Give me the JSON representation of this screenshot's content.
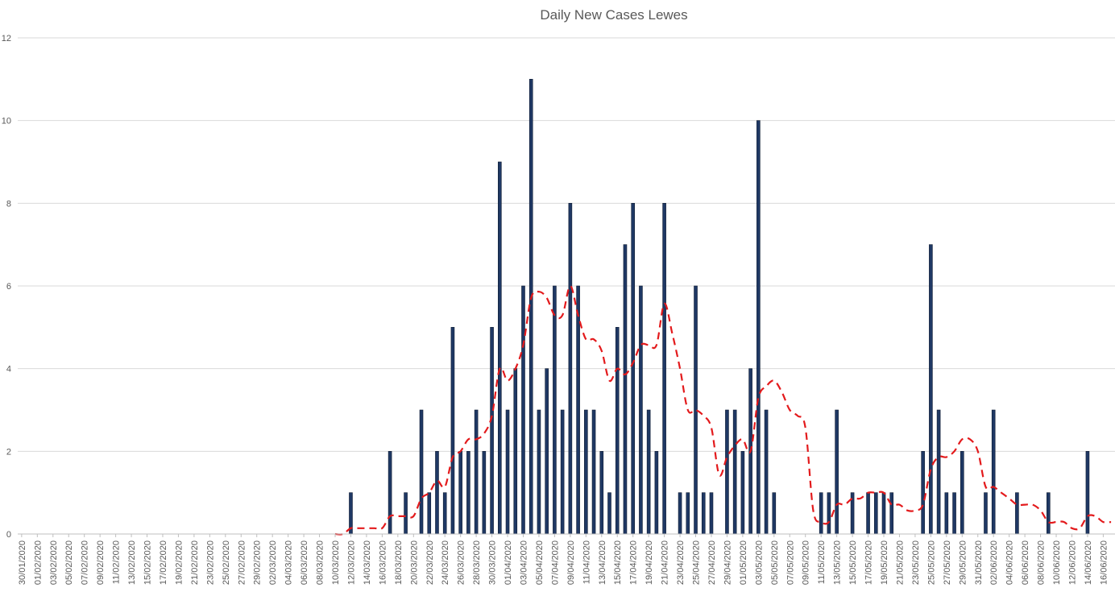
{
  "chart_data": {
    "type": "bar",
    "title": "Daily New Cases Lewes",
    "xlabel": "",
    "ylabel": "",
    "ylim": [
      0,
      12
    ],
    "y_ticks": [
      0,
      2,
      4,
      6,
      8,
      10,
      12
    ],
    "grid": true,
    "legend": "none",
    "start_date": "2020-01-30",
    "end_date": "2020-06-17",
    "tick_labels": [
      "30/01/2020",
      "01/02/2020",
      "03/02/2020",
      "05/02/2020",
      "07/02/2020",
      "09/02/2020",
      "11/02/2020",
      "13/02/2020",
      "15/02/2020",
      "17/02/2020",
      "19/02/2020",
      "21/02/2020",
      "23/02/2020",
      "25/02/2020",
      "27/02/2020",
      "29/02/2020",
      "02/03/2020",
      "04/03/2020",
      "06/03/2020",
      "08/03/2020",
      "10/03/2020",
      "12/03/2020",
      "14/03/2020",
      "16/03/2020",
      "18/03/2020",
      "20/03/2020",
      "22/03/2020",
      "24/03/2020",
      "26/03/2020",
      "28/03/2020",
      "30/03/2020",
      "01/04/2020",
      "03/04/2020",
      "05/04/2020",
      "07/04/2020",
      "09/04/2020",
      "11/04/2020",
      "13/04/2020",
      "15/04/2020",
      "17/04/2020",
      "19/04/2020",
      "21/04/2020",
      "23/04/2020",
      "25/04/2020",
      "27/04/2020",
      "29/04/2020",
      "01/05/2020",
      "03/05/2020",
      "05/05/2020",
      "07/05/2020",
      "09/05/2020",
      "11/05/2020",
      "13/05/2020",
      "15/05/2020",
      "17/05/2020",
      "19/05/2020",
      "21/05/2020",
      "23/05/2020",
      "25/05/2020",
      "27/05/2020",
      "29/05/2020",
      "31/05/2020",
      "02/06/2020",
      "04/06/2020",
      "06/06/2020",
      "08/06/2020",
      "10/06/2020",
      "12/06/2020",
      "14/06/2020",
      "16/06/2020"
    ],
    "series": [
      {
        "name": "",
        "type": "bar",
        "color": "#1f3864",
        "x": [
          "12/03/2020",
          "17/03/2020",
          "19/03/2020",
          "21/03/2020",
          "22/03/2020",
          "23/03/2020",
          "24/03/2020",
          "25/03/2020",
          "26/03/2020",
          "27/03/2020",
          "28/03/2020",
          "29/03/2020",
          "30/03/2020",
          "31/03/2020",
          "01/04/2020",
          "02/04/2020",
          "03/04/2020",
          "04/04/2020",
          "05/04/2020",
          "06/04/2020",
          "07/04/2020",
          "08/04/2020",
          "09/04/2020",
          "10/04/2020",
          "11/04/2020",
          "12/04/2020",
          "13/04/2020",
          "14/04/2020",
          "15/04/2020",
          "16/04/2020",
          "17/04/2020",
          "18/04/2020",
          "19/04/2020",
          "20/04/2020",
          "21/04/2020",
          "23/04/2020",
          "24/04/2020",
          "25/04/2020",
          "26/04/2020",
          "27/04/2020",
          "29/04/2020",
          "30/04/2020",
          "01/05/2020",
          "02/05/2020",
          "03/05/2020",
          "04/05/2020",
          "05/05/2020",
          "11/05/2020",
          "12/05/2020",
          "13/05/2020",
          "15/05/2020",
          "17/05/2020",
          "18/05/2020",
          "19/05/2020",
          "20/05/2020",
          "24/05/2020",
          "25/05/2020",
          "26/05/2020",
          "27/05/2020",
          "28/05/2020",
          "29/05/2020",
          "01/06/2020",
          "02/06/2020",
          "05/06/2020",
          "09/06/2020",
          "14/06/2020"
        ],
        "values": [
          1,
          2,
          1,
          3,
          1,
          2,
          1,
          5,
          2,
          2,
          3,
          2,
          5,
          9,
          3,
          4,
          6,
          11,
          3,
          4,
          6,
          3,
          8,
          6,
          3,
          3,
          2,
          1,
          5,
          7,
          8,
          6,
          3,
          2,
          8,
          1,
          1,
          6,
          1,
          1,
          3,
          3,
          2,
          4,
          10,
          3,
          1,
          1,
          1,
          3,
          1,
          1,
          1,
          1,
          1,
          2,
          7,
          3,
          1,
          1,
          2,
          1,
          3,
          1,
          1,
          2
        ]
      },
      {
        "name": "",
        "type": "line",
        "style": "dashed",
        "color": "#e31a1c",
        "x": [
          "10/03/2020",
          "11/03/2020",
          "12/03/2020",
          "13/03/2020",
          "14/03/2020",
          "15/03/2020",
          "16/03/2020",
          "17/03/2020",
          "18/03/2020",
          "19/03/2020",
          "20/03/2020",
          "21/03/2020",
          "22/03/2020",
          "23/03/2020",
          "24/03/2020",
          "25/03/2020",
          "26/03/2020",
          "27/03/2020",
          "28/03/2020",
          "29/03/2020",
          "30/03/2020",
          "31/03/2020",
          "01/04/2020",
          "02/04/2020",
          "03/04/2020",
          "04/04/2020",
          "05/04/2020",
          "06/04/2020",
          "07/04/2020",
          "08/04/2020",
          "09/04/2020",
          "10/04/2020",
          "11/04/2020",
          "12/04/2020",
          "13/04/2020",
          "14/04/2020",
          "15/04/2020",
          "16/04/2020",
          "17/04/2020",
          "18/04/2020",
          "19/04/2020",
          "20/04/2020",
          "21/04/2020",
          "22/04/2020",
          "23/04/2020",
          "24/04/2020",
          "25/04/2020",
          "26/04/2020",
          "27/04/2020",
          "28/04/2020",
          "29/04/2020",
          "30/04/2020",
          "01/05/2020",
          "02/05/2020",
          "03/05/2020",
          "04/05/2020",
          "05/05/2020",
          "06/05/2020",
          "07/05/2020",
          "08/05/2020",
          "09/05/2020",
          "10/05/2020",
          "11/05/2020",
          "12/05/2020",
          "13/05/2020",
          "14/05/2020",
          "15/05/2020",
          "16/05/2020",
          "17/05/2020",
          "18/05/2020",
          "19/05/2020",
          "20/05/2020",
          "21/05/2020",
          "22/05/2020",
          "23/05/2020",
          "24/05/2020",
          "25/05/2020",
          "26/05/2020",
          "27/05/2020",
          "28/05/2020",
          "29/05/2020",
          "30/05/2020",
          "31/05/2020",
          "01/06/2020",
          "02/06/2020",
          "03/06/2020",
          "04/06/2020",
          "05/06/2020",
          "06/06/2020",
          "07/06/2020",
          "08/06/2020",
          "09/06/2020",
          "10/06/2020",
          "11/06/2020",
          "12/06/2020",
          "13/06/2020",
          "14/06/2020",
          "15/06/2020",
          "16/06/2020",
          "17/06/2020"
        ],
        "values": [
          0,
          0,
          0.14,
          0.14,
          0.14,
          0.14,
          0.14,
          0.43,
          0.43,
          0.43,
          0.43,
          0.86,
          1,
          1.29,
          1.14,
          1.86,
          2,
          2.29,
          2.29,
          2.43,
          2.86,
          4,
          3.71,
          4,
          4.57,
          5.71,
          5.86,
          5.71,
          5.29,
          5.29,
          6,
          5.29,
          4.71,
          4.71,
          4.43,
          3.71,
          4,
          3.86,
          4.14,
          4.57,
          4.57,
          4.57,
          5.57,
          4.86,
          4,
          3,
          3,
          2.86,
          2.57,
          1.43,
          1.86,
          2.14,
          2.29,
          2,
          3.29,
          3.57,
          3.71,
          3.43,
          3,
          2.86,
          2.57,
          0.57,
          0.29,
          0.29,
          0.71,
          0.71,
          0.86,
          0.86,
          1,
          1,
          1,
          0.71,
          0.71,
          0.57,
          0.57,
          0.71,
          1.57,
          1.86,
          1.86,
          2,
          2.29,
          2.29,
          2,
          1.14,
          1.14,
          1,
          0.86,
          0.71,
          0.71,
          0.71,
          0.57,
          0.29,
          0.29,
          0.29,
          0.14,
          0.14,
          0.43,
          0.43,
          0.29,
          0.29
        ]
      }
    ]
  }
}
